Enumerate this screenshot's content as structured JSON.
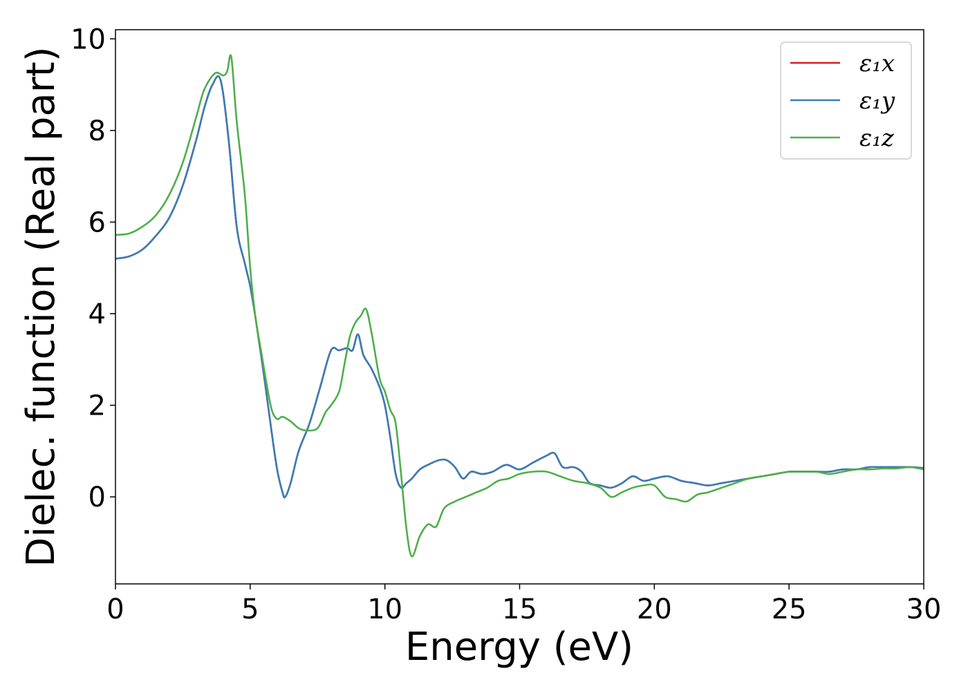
{
  "chart_data": {
    "type": "line",
    "title": "",
    "xlabel": "Energy (eV)",
    "ylabel": "Dielec. function (Real part)",
    "xlim": [
      0,
      30
    ],
    "ylim": [
      -1.9,
      10.2
    ],
    "xticks": [
      0,
      5,
      10,
      15,
      20,
      25,
      30
    ],
    "yticks": [
      0,
      2,
      4,
      6,
      8,
      10
    ],
    "grid": false,
    "legend_position": "top-right",
    "series": [
      {
        "name": "ε₁x",
        "color": "#e41a1c",
        "x": [
          0,
          0.5,
          1,
          1.5,
          2,
          2.5,
          3,
          3.3,
          3.6,
          3.9,
          4.2,
          4.5,
          4.8,
          5.0,
          5.2,
          5.5,
          5.8,
          6.0,
          6.2,
          6.3,
          6.5,
          6.8,
          7.2,
          7.6,
          8.0,
          8.3,
          8.6,
          8.8,
          9.0,
          9.2,
          9.5,
          9.8,
          10.0,
          10.2,
          10.4,
          10.6,
          10.8,
          11.0,
          11.3,
          11.6,
          12.0,
          12.3,
          12.6,
          12.9,
          13.2,
          13.6,
          14.0,
          14.5,
          15.0,
          15.5,
          16.0,
          16.3,
          16.6,
          17.0,
          17.3,
          17.6,
          18.0,
          18.4,
          18.8,
          19.2,
          19.6,
          20.0,
          20.5,
          21.0,
          21.5,
          22.0,
          22.5,
          23.0,
          23.5,
          24.0,
          24.5,
          25.0,
          25.5,
          26.0,
          26.5,
          27.0,
          27.5,
          28.0,
          28.5,
          29.0,
          29.5,
          30.0
        ],
        "y": [
          5.2,
          5.25,
          5.4,
          5.7,
          6.1,
          6.8,
          7.8,
          8.5,
          9.0,
          9.1,
          7.8,
          5.9,
          5.1,
          4.6,
          3.9,
          2.7,
          1.4,
          0.6,
          0.1,
          0.0,
          0.3,
          1.0,
          1.6,
          2.4,
          3.2,
          3.2,
          3.25,
          3.2,
          3.55,
          3.1,
          2.8,
          2.4,
          2.0,
          1.3,
          0.5,
          0.2,
          0.3,
          0.4,
          0.6,
          0.7,
          0.8,
          0.8,
          0.65,
          0.4,
          0.55,
          0.5,
          0.55,
          0.7,
          0.6,
          0.75,
          0.9,
          0.95,
          0.65,
          0.65,
          0.55,
          0.3,
          0.25,
          0.2,
          0.3,
          0.45,
          0.35,
          0.4,
          0.45,
          0.35,
          0.3,
          0.25,
          0.3,
          0.35,
          0.4,
          0.45,
          0.5,
          0.55,
          0.55,
          0.55,
          0.55,
          0.6,
          0.6,
          0.65,
          0.65,
          0.65,
          0.65,
          0.63
        ]
      },
      {
        "name": "ε₁y",
        "color": "#377eb8",
        "x": [
          0,
          0.5,
          1,
          1.5,
          2,
          2.5,
          3,
          3.3,
          3.6,
          3.9,
          4.2,
          4.5,
          4.8,
          5.0,
          5.2,
          5.5,
          5.8,
          6.0,
          6.2,
          6.3,
          6.5,
          6.8,
          7.2,
          7.6,
          8.0,
          8.3,
          8.6,
          8.8,
          9.0,
          9.2,
          9.5,
          9.8,
          10.0,
          10.2,
          10.4,
          10.6,
          10.8,
          11.0,
          11.3,
          11.6,
          12.0,
          12.3,
          12.6,
          12.9,
          13.2,
          13.6,
          14.0,
          14.5,
          15.0,
          15.5,
          16.0,
          16.3,
          16.6,
          17.0,
          17.3,
          17.6,
          18.0,
          18.4,
          18.8,
          19.2,
          19.6,
          20.0,
          20.5,
          21.0,
          21.5,
          22.0,
          22.5,
          23.0,
          23.5,
          24.0,
          24.5,
          25.0,
          25.5,
          26.0,
          26.5,
          27.0,
          27.5,
          28.0,
          28.5,
          29.0,
          29.5,
          30.0
        ],
        "y": [
          5.2,
          5.25,
          5.4,
          5.7,
          6.1,
          6.8,
          7.8,
          8.5,
          9.0,
          9.1,
          7.8,
          5.9,
          5.1,
          4.6,
          3.9,
          2.7,
          1.4,
          0.6,
          0.1,
          0.0,
          0.3,
          1.0,
          1.6,
          2.4,
          3.2,
          3.2,
          3.25,
          3.2,
          3.55,
          3.1,
          2.8,
          2.4,
          2.0,
          1.3,
          0.5,
          0.2,
          0.3,
          0.4,
          0.6,
          0.7,
          0.8,
          0.8,
          0.65,
          0.4,
          0.55,
          0.5,
          0.55,
          0.7,
          0.6,
          0.75,
          0.9,
          0.95,
          0.65,
          0.65,
          0.55,
          0.3,
          0.25,
          0.2,
          0.3,
          0.45,
          0.35,
          0.4,
          0.45,
          0.35,
          0.3,
          0.25,
          0.3,
          0.35,
          0.4,
          0.45,
          0.5,
          0.55,
          0.55,
          0.55,
          0.55,
          0.6,
          0.6,
          0.65,
          0.65,
          0.65,
          0.65,
          0.63
        ]
      },
      {
        "name": "ε₁z",
        "color": "#4daf4a",
        "x": [
          0,
          0.5,
          1,
          1.5,
          2,
          2.5,
          3,
          3.3,
          3.7,
          4.0,
          4.15,
          4.3,
          4.5,
          4.8,
          5.0,
          5.2,
          5.4,
          5.6,
          5.8,
          6.0,
          6.2,
          6.5,
          6.8,
          7.1,
          7.5,
          7.8,
          8.0,
          8.3,
          8.5,
          8.7,
          8.9,
          9.1,
          9.3,
          9.5,
          9.8,
          10.0,
          10.2,
          10.4,
          10.6,
          10.8,
          11.0,
          11.3,
          11.6,
          11.9,
          12.2,
          12.6,
          13.0,
          13.4,
          13.8,
          14.2,
          14.6,
          15.0,
          15.5,
          16.0,
          16.5,
          17.0,
          17.5,
          18.0,
          18.4,
          18.8,
          19.2,
          19.6,
          20.0,
          20.4,
          20.8,
          21.2,
          21.6,
          22.0,
          22.5,
          23.0,
          23.5,
          24.0,
          24.5,
          25.0,
          25.5,
          26.0,
          26.5,
          27.0,
          27.5,
          28.0,
          28.5,
          29.0,
          29.5,
          30.0
        ],
        "y": [
          5.72,
          5.75,
          5.9,
          6.15,
          6.6,
          7.3,
          8.3,
          8.9,
          9.25,
          9.2,
          9.3,
          9.6,
          8.2,
          6.6,
          5.0,
          3.9,
          3.2,
          2.5,
          1.9,
          1.7,
          1.75,
          1.65,
          1.5,
          1.45,
          1.5,
          1.85,
          2.0,
          2.3,
          2.9,
          3.5,
          3.8,
          3.95,
          4.1,
          3.6,
          2.6,
          2.3,
          1.9,
          1.6,
          0.5,
          -0.7,
          -1.3,
          -0.85,
          -0.6,
          -0.65,
          -0.25,
          -0.1,
          0.0,
          0.1,
          0.2,
          0.35,
          0.4,
          0.5,
          0.55,
          0.55,
          0.45,
          0.35,
          0.3,
          0.2,
          0.0,
          0.1,
          0.2,
          0.25,
          0.25,
          0.0,
          -0.05,
          -0.1,
          0.05,
          0.1,
          0.2,
          0.3,
          0.4,
          0.45,
          0.5,
          0.55,
          0.55,
          0.55,
          0.5,
          0.55,
          0.6,
          0.6,
          0.62,
          0.62,
          0.65,
          0.6
        ]
      }
    ]
  }
}
